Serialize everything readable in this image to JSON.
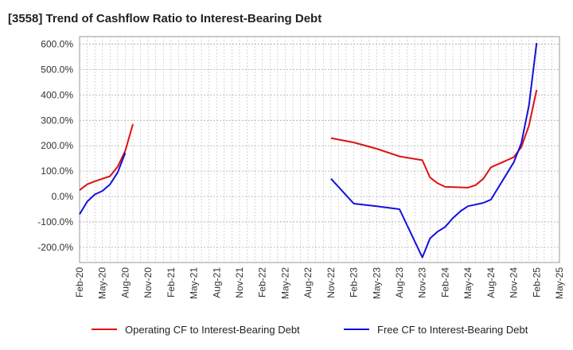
{
  "title": "[3558]  Trend of Cashflow Ratio to Interest-Bearing Debt",
  "chart_data": {
    "type": "line",
    "title": "[3558]  Trend of Cashflow Ratio to Interest-Bearing Debt",
    "xlabel": "",
    "ylabel": "",
    "ylim": [
      -260,
      630
    ],
    "yticks": [
      600,
      500,
      400,
      300,
      200,
      100,
      0,
      -100,
      -200
    ],
    "ytick_labels": [
      "600.0%",
      "500.0%",
      "400.0%",
      "300.0%",
      "200.0%",
      "100.0%",
      "0.0%",
      "-100.0%",
      "-200.0%"
    ],
    "xticks": [
      "Feb-20",
      "May-20",
      "Aug-20",
      "Nov-20",
      "Feb-21",
      "May-21",
      "Aug-21",
      "Nov-21",
      "Feb-22",
      "May-22",
      "Aug-22",
      "Nov-22",
      "Feb-23",
      "May-23",
      "Aug-23",
      "Nov-23",
      "Feb-24",
      "May-24",
      "Aug-24",
      "Nov-24",
      "Feb-25",
      "May-25"
    ],
    "grid": true,
    "legend_position": "bottom",
    "series": [
      {
        "name": "Operating CF to Interest-Bearing Debt",
        "color": "#dd1111",
        "segments": [
          [
            [
              "2020-02",
              25
            ],
            [
              "2020-03",
              48
            ],
            [
              "2020-04",
              60
            ],
            [
              "2020-05",
              70
            ],
            [
              "2020-06",
              80
            ],
            [
              "2020-07",
              118
            ],
            [
              "2020-08",
              180
            ],
            [
              "2020-09",
              285
            ]
          ],
          [
            [
              "2022-11",
              230
            ],
            [
              "2023-02",
              213
            ],
            [
              "2023-05",
              188
            ],
            [
              "2023-08",
              158
            ],
            [
              "2023-11",
              143
            ],
            [
              "2023-12",
              75
            ],
            [
              "2024-01",
              52
            ],
            [
              "2024-02",
              38
            ],
            [
              "2024-05",
              35
            ],
            [
              "2024-06",
              45
            ],
            [
              "2024-07",
              70
            ],
            [
              "2024-08",
              115
            ],
            [
              "2024-11",
              155
            ],
            [
              "2024-12",
              195
            ],
            [
              "2025-01",
              280
            ],
            [
              "2025-02",
              420
            ]
          ]
        ]
      },
      {
        "name": "Free CF to Interest-Bearing Debt",
        "color": "#1111dd",
        "segments": [
          [
            [
              "2020-02",
              -70
            ],
            [
              "2020-03",
              -20
            ],
            [
              "2020-04",
              8
            ],
            [
              "2020-05",
              22
            ],
            [
              "2020-06",
              48
            ],
            [
              "2020-07",
              95
            ],
            [
              "2020-08",
              172
            ]
          ],
          [
            [
              "2022-11",
              70
            ],
            [
              "2023-02",
              -28
            ],
            [
              "2023-05",
              -38
            ],
            [
              "2023-08",
              -50
            ],
            [
              "2023-11",
              -240
            ],
            [
              "2023-12",
              -165
            ],
            [
              "2024-01",
              -138
            ],
            [
              "2024-02",
              -120
            ],
            [
              "2024-03",
              -85
            ],
            [
              "2024-04",
              -58
            ],
            [
              "2024-05",
              -38
            ],
            [
              "2024-06",
              -32
            ],
            [
              "2024-07",
              -25
            ],
            [
              "2024-08",
              -12
            ],
            [
              "2024-11",
              135
            ],
            [
              "2024-12",
              210
            ],
            [
              "2025-01",
              360
            ],
            [
              "2025-02",
              605
            ]
          ]
        ]
      }
    ]
  }
}
